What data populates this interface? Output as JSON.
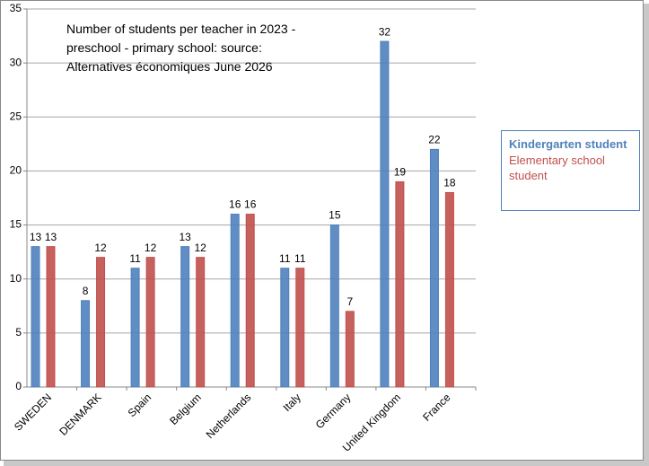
{
  "chart_data": {
    "type": "bar",
    "title": "Number of students per teacher in 2023 - preschool - primary school: source: Alternatives économiques June 2026",
    "categories": [
      "SWEDEN",
      "DENMARK",
      "Spain",
      "Belgium",
      "Netherlands",
      "Italy",
      "Germany",
      "United Kingdom",
      "France"
    ],
    "series": [
      {
        "name": "Kindergarten student",
        "color": "#4f81bd",
        "values": [
          13,
          8,
          11,
          13,
          16,
          11,
          15,
          32,
          22
        ]
      },
      {
        "name": "Elementary school student",
        "color": "#c0504d",
        "values": [
          13,
          12,
          12,
          12,
          16,
          11,
          7,
          19,
          18
        ]
      }
    ],
    "ylim": [
      0,
      35
    ],
    "yticks": [
      0,
      5,
      10,
      15,
      20,
      25,
      30,
      35
    ],
    "grid": true,
    "legend": "right"
  }
}
